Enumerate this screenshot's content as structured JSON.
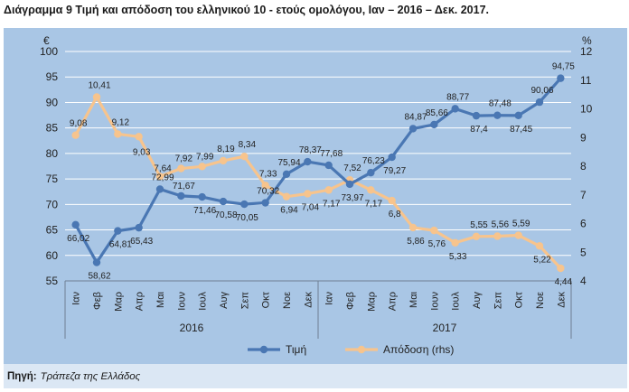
{
  "title": "Διάγραμμα 9 Τιμή και απόδοση του ελληνικού 10 - ετούς ομολόγου, Ιαν – 2016 – Δεκ. 2017.",
  "source": {
    "label": "Πηγή:",
    "text": "Τράπεζα της Ελλάδος"
  },
  "colors": {
    "price": "#4a77b3",
    "yield": "#f7c48d",
    "panel": "#a9c6e5",
    "grid": "#ffffff"
  },
  "chart_data": {
    "type": "line",
    "categories": [
      "Ιαν",
      "Φεβ",
      "Μαρ",
      "Απρ",
      "Μαι",
      "Ιουν",
      "Ιουλ",
      "Αυγ",
      "Σεπ",
      "Οκτ",
      "Νοε",
      "Δεκ",
      "Ιαν",
      "Φεβ",
      "Μαρ",
      "Απρ",
      "Μαι",
      "Ιουν",
      "Ιουλ",
      "Αυγ",
      "Σεπ",
      "Οκτ",
      "Νοε",
      "Δεκ"
    ],
    "year_groups": [
      {
        "label": "2016",
        "from": 0,
        "to": 11
      },
      {
        "label": "2017",
        "from": 12,
        "to": 23
      }
    ],
    "left_axis": {
      "unit": "€",
      "min": 55,
      "max": 100,
      "ticks": [
        "55",
        "60",
        "65",
        "70",
        "75",
        "80",
        "85",
        "90",
        "95",
        "100"
      ]
    },
    "right_axis": {
      "unit": "%",
      "min": 4,
      "max": 12,
      "ticks": [
        "4",
        "5",
        "6",
        "7",
        "8",
        "9",
        "10",
        "11",
        "12"
      ]
    },
    "grid": true,
    "legend_position": "bottom",
    "series": [
      {
        "name": "Τιμή",
        "axis": "left",
        "values": [
          66.02,
          58.62,
          64.81,
          65.43,
          72.99,
          71.67,
          71.46,
          70.58,
          70.05,
          70.32,
          75.94,
          78.37,
          77.68,
          73.97,
          76.23,
          79.27,
          84.87,
          85.66,
          88.77,
          87.4,
          87.48,
          87.45,
          90.06,
          94.75
        ],
        "labels": [
          "66,02",
          "58,62",
          "64,81",
          "65,43",
          "72,99",
          "71,67",
          "71,46",
          "70,58",
          "70,05",
          "70,32",
          "75,94",
          "78,37",
          "77,68",
          "73,97",
          "76,23",
          "79,27",
          "84,87",
          "85,66",
          "88,77",
          "87,4",
          "87,48",
          "87,45",
          "90,06",
          "94,75"
        ]
      },
      {
        "name": "Απόδοση (rhs)",
        "axis": "right",
        "values": [
          9.08,
          10.41,
          9.12,
          9.03,
          7.64,
          7.92,
          7.99,
          8.19,
          8.34,
          7.33,
          6.94,
          7.04,
          7.17,
          7.52,
          7.17,
          6.8,
          5.86,
          5.76,
          5.33,
          5.55,
          5.56,
          5.59,
          5.22,
          4.44
        ],
        "labels": [
          "9,08",
          "10,41",
          "9,12",
          "9,03",
          "7,64",
          "7,92",
          "7,99",
          "8,19",
          "8,34",
          "7,33",
          "6,94",
          "7,04",
          "7,17",
          "7,52",
          "7,17",
          "6,8",
          "5,86",
          "5,76",
          "5,33",
          "5,55",
          "5,56",
          "5,59",
          "5,22",
          "4,44"
        ]
      }
    ]
  }
}
